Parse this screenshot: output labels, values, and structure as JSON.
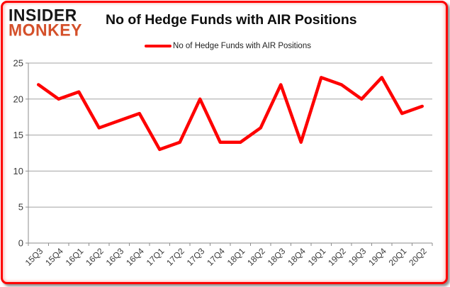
{
  "page": {
    "background": "#ffffff",
    "border_color": "#fe0000"
  },
  "logo": {
    "line1": "INSIDER",
    "line2": "MONKEY",
    "line1_color": "#161616",
    "line2_color": "#d4502a"
  },
  "header": {
    "title": "No of Hedge Funds with AIR Positions"
  },
  "legend": {
    "label": "No of Hedge Funds with AIR Positions",
    "swatch_color": "#fe0000"
  },
  "chart_data": {
    "type": "line",
    "title": "No of Hedge Funds with AIR Positions",
    "categories": [
      "15Q3",
      "15Q4",
      "16Q1",
      "16Q2",
      "16Q3",
      "16Q4",
      "17Q1",
      "17Q2",
      "17Q3",
      "17Q4",
      "18Q1",
      "18Q2",
      "18Q3",
      "18Q4",
      "19Q1",
      "19Q2",
      "19Q3",
      "19Q4",
      "20Q1",
      "20Q2"
    ],
    "series": [
      {
        "name": "No of Hedge Funds with AIR Positions",
        "color": "#fe0000",
        "values": [
          22,
          20,
          21,
          16,
          17,
          18,
          13,
          14,
          20,
          14,
          14,
          16,
          22,
          14,
          23,
          22,
          20,
          23,
          18,
          19
        ]
      }
    ],
    "xlabel": "",
    "ylabel": "",
    "ylim": [
      0,
      25
    ],
    "yticks": [
      0,
      5,
      10,
      15,
      20,
      25
    ],
    "grid": true,
    "gridline_color": "#a3a3a3",
    "axis_color": "#8e8e8e",
    "tick_label_color": "#3a3a3a",
    "legend_position": "top"
  }
}
